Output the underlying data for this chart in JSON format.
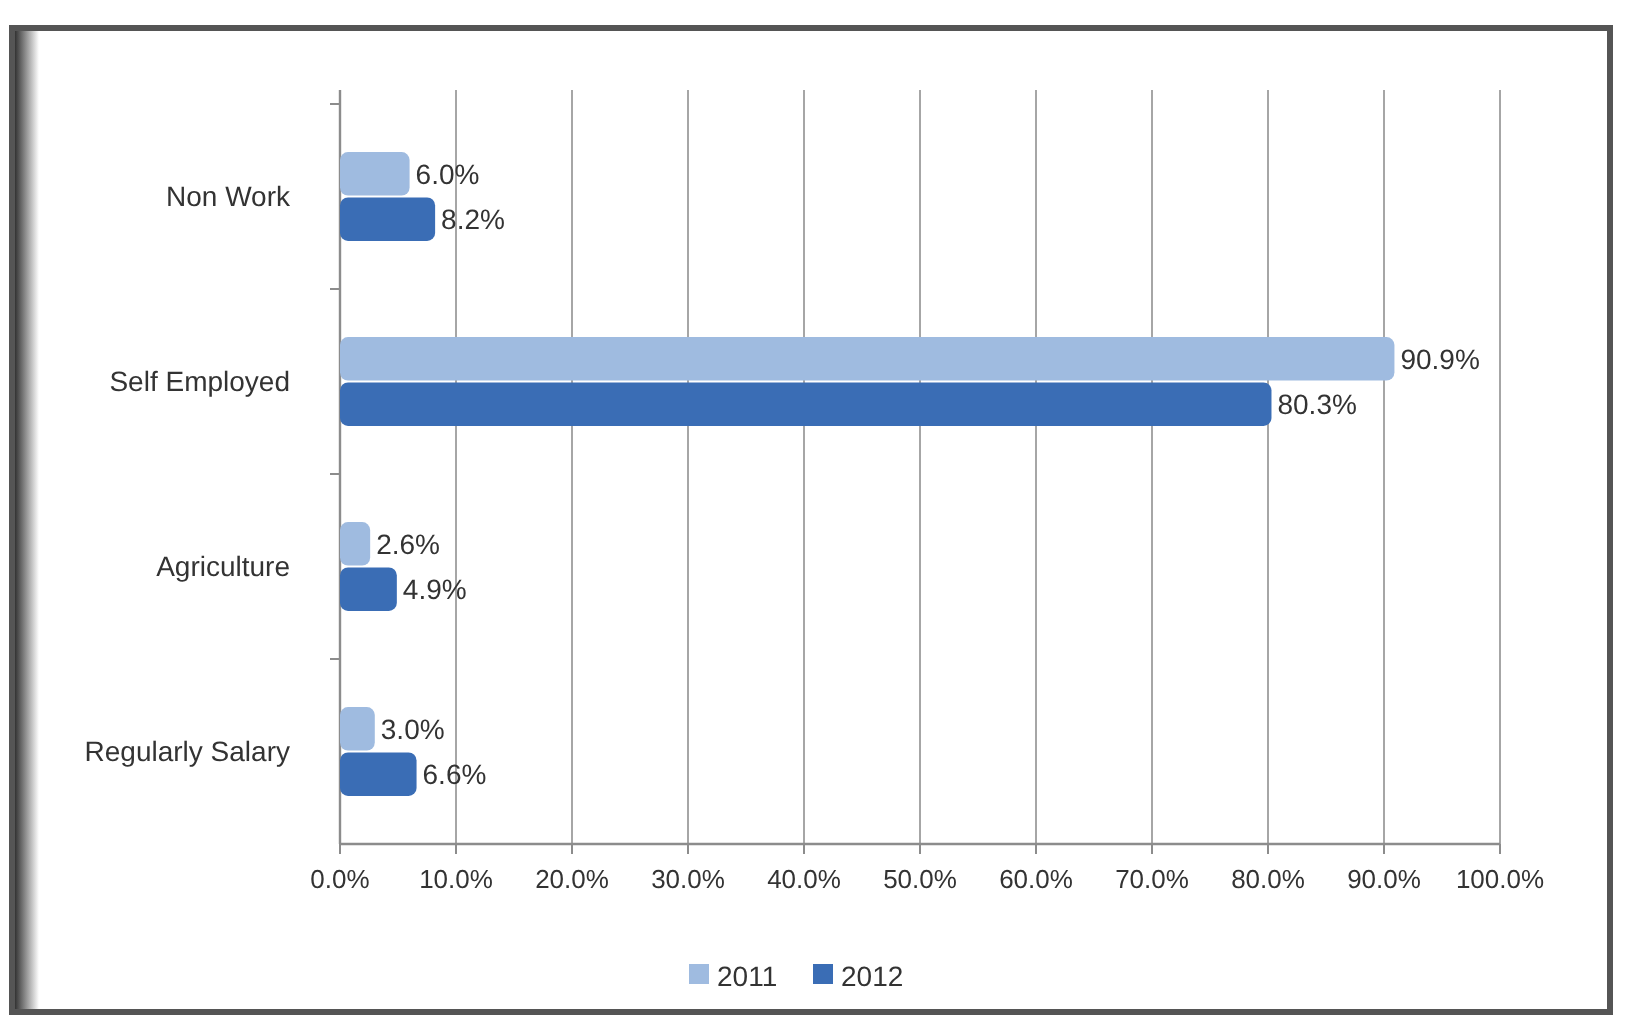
{
  "chart_data": {
    "type": "bar",
    "orientation": "horizontal",
    "categories": [
      "Non Work",
      "Self Employed",
      "Agriculture",
      "Regularly Salary"
    ],
    "series": [
      {
        "name": "2011",
        "color": "#9fbbe0",
        "values": [
          6.0,
          90.9,
          2.6,
          3.0
        ],
        "value_labels": [
          "6.0%",
          "90.9%",
          "2.6%",
          "3.0%"
        ]
      },
      {
        "name": "2012",
        "color": "#3a6db5",
        "values": [
          8.2,
          80.3,
          4.9,
          6.6
        ],
        "value_labels": [
          "8.2%",
          "80.3%",
          "4.9%",
          "6.6%"
        ]
      }
    ],
    "xlim": [
      0,
      100
    ],
    "xticks": [
      {
        "value": 0,
        "label": "0.0%"
      },
      {
        "value": 10,
        "label": "10.0%"
      },
      {
        "value": 20,
        "label": "20.0%"
      },
      {
        "value": 30,
        "label": "30.0%"
      },
      {
        "value": 40,
        "label": "40.0%"
      },
      {
        "value": 50,
        "label": "50.0%"
      },
      {
        "value": 60,
        "label": "60.0%"
      },
      {
        "value": 70,
        "label": "70.0%"
      },
      {
        "value": 80,
        "label": "80.0%"
      },
      {
        "value": 90,
        "label": "90.0%"
      },
      {
        "value": 100,
        "label": "100.0%"
      }
    ],
    "grid": "x",
    "legend": "bottom"
  }
}
